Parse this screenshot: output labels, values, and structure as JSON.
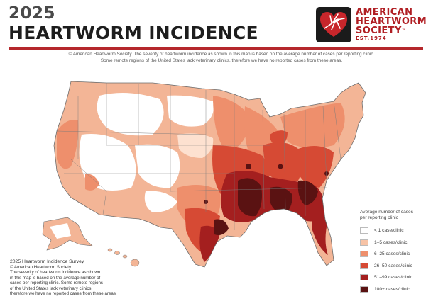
{
  "header": {
    "year": "2025",
    "title": "HEARTWORM INCIDENCE"
  },
  "logo": {
    "line1": "AMERICAN",
    "line2": "HEARTWORM",
    "line3": "SOCIETY",
    "tm": "™",
    "est": "EST.1974",
    "brand_color": "#b01e23",
    "icon": "mosquito-heart-icon"
  },
  "caption": {
    "line1": "© American Heartworm Society. The severity of heartworm incidence as shown in this map is based on the average number of cases per reporting clinic.",
    "line2": "Some remote regions of the United States lack veterinary clinics, therefore we have no reported cases from these areas."
  },
  "legend": {
    "title_line1": "Average number of cases",
    "title_line2": "per reporting clinic",
    "items": [
      {
        "label": "< 1 case/clinic",
        "color": "#ffffff"
      },
      {
        "label": "1–5 cases/clinic",
        "color": "#f7c3a6"
      },
      {
        "label": "6–25 cases/clinic",
        "color": "#ee8f6c"
      },
      {
        "label": "26–50 cases/clinic",
        "color": "#d64a34"
      },
      {
        "label": "51–99 cases/clinic",
        "color": "#a41f1f"
      },
      {
        "label": "100+ cases/clinic",
        "color": "#5a1212"
      }
    ]
  },
  "survey": {
    "title": "2025 Heartworm Incidence Survey",
    "copyright": "© American Heartworm Society",
    "lines": [
      "The severity of heartworm incidence as shown",
      "in this map is based on the average number of",
      "cases per reporting clinic. Some remote regions",
      "of the United States lack veterinary clinics,",
      "therefore we have no reported cases from these areas."
    ]
  }
}
